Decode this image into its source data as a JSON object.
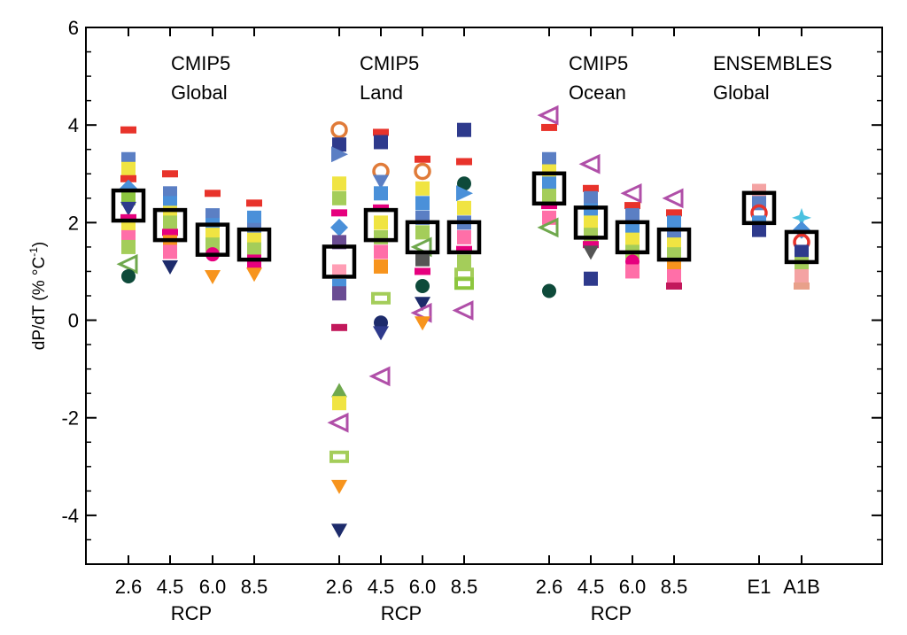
{
  "chart_data": {
    "type": "scatter",
    "title": "",
    "ylabel_main": "dP/dT (% °C",
    "ylabel_sup": "-1",
    "ylabel_close": ")",
    "ylim": [
      -5,
      6
    ],
    "yticks": [
      -4,
      -2,
      0,
      2,
      4,
      6
    ],
    "ytick_labels": [
      "-4",
      "-2",
      "0",
      "2",
      "4",
      "6"
    ],
    "grid": false,
    "legend": "none",
    "groups": [
      {
        "id": "cmip5-global",
        "label_line1": "CMIP5",
        "label_line2": "Global",
        "xlabel": "RCP"
      },
      {
        "id": "cmip5-land",
        "label_line1": "CMIP5",
        "label_line2": "Land",
        "xlabel": "RCP"
      },
      {
        "id": "cmip5-ocean",
        "label_line1": "CMIP5",
        "label_line2": "Ocean",
        "xlabel": "RCP"
      },
      {
        "id": "ensembles-global",
        "label_line1": "ENSEMBLES",
        "label_line2": "Global",
        "xlabel": ""
      }
    ],
    "columns": [
      {
        "group": 0,
        "label": "2.6",
        "mean": 2.35,
        "points": [
          {
            "y": 3.9,
            "c": "#e8332b",
            "s": "bar"
          },
          {
            "y": 3.3,
            "c": "#5b7fc4",
            "s": "sq"
          },
          {
            "y": 3.1,
            "c": "#f0e442",
            "s": "sq"
          },
          {
            "y": 2.9,
            "c": "#e8332b",
            "s": "bar"
          },
          {
            "y": 2.7,
            "c": "#4a90d9",
            "s": "diamond"
          },
          {
            "y": 2.5,
            "c": "#8dc63f",
            "s": "sq"
          },
          {
            "y": 2.3,
            "c": "#2e3a8c",
            "s": "tri-down"
          },
          {
            "y": 2.1,
            "c": "#e6007e",
            "s": "bar"
          },
          {
            "y": 1.9,
            "c": "#f0e442",
            "s": "sq"
          },
          {
            "y": 1.7,
            "c": "#ff6fa8",
            "s": "sq"
          },
          {
            "y": 1.5,
            "c": "#a4cd5a",
            "s": "sq"
          },
          {
            "y": 1.15,
            "c": "#6fa84d",
            "s": "tri-left"
          },
          {
            "y": 0.9,
            "c": "#0e4a3a",
            "s": "circle"
          }
        ]
      },
      {
        "group": 0,
        "label": "4.5",
        "mean": 1.95,
        "points": [
          {
            "y": 3.0,
            "c": "#e8332b",
            "s": "bar"
          },
          {
            "y": 2.6,
            "c": "#5b7fc4",
            "s": "sq"
          },
          {
            "y": 2.4,
            "c": "#4a90d9",
            "s": "sq"
          },
          {
            "y": 2.2,
            "c": "#f0e442",
            "s": "sq"
          },
          {
            "y": 2.0,
            "c": "#a4cd5a",
            "s": "sq"
          },
          {
            "y": 1.8,
            "c": "#e6007e",
            "s": "bar"
          },
          {
            "y": 1.6,
            "c": "#f7941d",
            "s": "sq"
          },
          {
            "y": 1.4,
            "c": "#ff6fa8",
            "s": "sq"
          },
          {
            "y": 1.1,
            "c": "#1d2b6b",
            "s": "tri-down"
          }
        ]
      },
      {
        "group": 0,
        "label": "6.0",
        "mean": 1.65,
        "points": [
          {
            "y": 2.6,
            "c": "#e8332b",
            "s": "bar"
          },
          {
            "y": 2.15,
            "c": "#5b7fc4",
            "s": "sq"
          },
          {
            "y": 1.95,
            "c": "#4a90d9",
            "s": "sq"
          },
          {
            "y": 1.75,
            "c": "#f0e442",
            "s": "sq"
          },
          {
            "y": 1.55,
            "c": "#a4cd5a",
            "s": "sq"
          },
          {
            "y": 1.35,
            "c": "#e6007e",
            "s": "circle"
          },
          {
            "y": 0.9,
            "c": "#f7941d",
            "s": "tri-down"
          }
        ]
      },
      {
        "group": 0,
        "label": "8.5",
        "mean": 1.55,
        "points": [
          {
            "y": 2.4,
            "c": "#e8332b",
            "s": "bar"
          },
          {
            "y": 2.1,
            "c": "#4a90d9",
            "s": "sq"
          },
          {
            "y": 1.85,
            "c": "#5b7fc4",
            "s": "sq"
          },
          {
            "y": 1.65,
            "c": "#f0e442",
            "s": "sq"
          },
          {
            "y": 1.45,
            "c": "#a4cd5a",
            "s": "sq"
          },
          {
            "y": 1.2,
            "c": "#e6007e",
            "s": "sq"
          },
          {
            "y": 0.95,
            "c": "#f7941d",
            "s": "tri-down"
          }
        ]
      },
      {
        "group": 1,
        "label": "2.6",
        "mean": 1.2,
        "points": [
          {
            "y": 3.9,
            "c": "#e07b39",
            "s": "ring"
          },
          {
            "y": 3.6,
            "c": "#2e3a8c",
            "s": "sq"
          },
          {
            "y": 3.4,
            "c": "#5b7fc4",
            "s": "tri-right"
          },
          {
            "y": 2.8,
            "c": "#f0e442",
            "s": "sq"
          },
          {
            "y": 2.5,
            "c": "#a4cd5a",
            "s": "sq"
          },
          {
            "y": 2.2,
            "c": "#e6007e",
            "s": "bar"
          },
          {
            "y": 1.9,
            "c": "#4a90d9",
            "s": "diamond"
          },
          {
            "y": 1.6,
            "c": "#6a4c93",
            "s": "sq"
          },
          {
            "y": 1.0,
            "c": "#ff9eb5",
            "s": "sq"
          },
          {
            "y": 0.7,
            "c": "#4a90d9",
            "s": "sq"
          },
          {
            "y": 0.55,
            "c": "#6a4c93",
            "s": "sq"
          },
          {
            "y": -0.15,
            "c": "#c2185b",
            "s": "bar"
          },
          {
            "y": -1.45,
            "c": "#6fa84d",
            "s": "tri-up"
          },
          {
            "y": -1.7,
            "c": "#f0e442",
            "s": "sq"
          },
          {
            "y": -2.1,
            "c": "#b04fa8",
            "s": "tri-left"
          },
          {
            "y": -2.8,
            "c": "#a4cd5a",
            "s": "hbox"
          },
          {
            "y": -3.4,
            "c": "#f7941d",
            "s": "tri-down"
          },
          {
            "y": -4.3,
            "c": "#1d2b6b",
            "s": "tri-down"
          }
        ]
      },
      {
        "group": 1,
        "label": "4.5",
        "mean": 1.95,
        "points": [
          {
            "y": 3.85,
            "c": "#e8332b",
            "s": "bar"
          },
          {
            "y": 3.65,
            "c": "#2e3a8c",
            "s": "sq"
          },
          {
            "y": 3.05,
            "c": "#e07b39",
            "s": "ring"
          },
          {
            "y": 2.85,
            "c": "#5b7fc4",
            "s": "tri-down"
          },
          {
            "y": 2.6,
            "c": "#4a90d9",
            "s": "sq"
          },
          {
            "y": 2.3,
            "c": "#e6007e",
            "s": "bar"
          },
          {
            "y": 2.0,
            "c": "#f0e442",
            "s": "sq"
          },
          {
            "y": 1.7,
            "c": "#a4cd5a",
            "s": "sq"
          },
          {
            "y": 1.4,
            "c": "#ff6fa8",
            "s": "sq"
          },
          {
            "y": 1.1,
            "c": "#f7941d",
            "s": "sq"
          },
          {
            "y": 0.45,
            "c": "#a4cd5a",
            "s": "hbox"
          },
          {
            "y": -0.05,
            "c": "#1d2b6b",
            "s": "circle"
          },
          {
            "y": -0.25,
            "c": "#2e3a8c",
            "s": "tri-down"
          },
          {
            "y": -1.15,
            "c": "#b04fa8",
            "s": "tri-left"
          }
        ]
      },
      {
        "group": 1,
        "label": "6.0",
        "mean": 1.7,
        "points": [
          {
            "y": 3.3,
            "c": "#e8332b",
            "s": "bar"
          },
          {
            "y": 3.05,
            "c": "#e07b39",
            "s": "ring"
          },
          {
            "y": 2.7,
            "c": "#f0e442",
            "s": "sq"
          },
          {
            "y": 2.4,
            "c": "#4a90d9",
            "s": "sq"
          },
          {
            "y": 2.1,
            "c": "#5b7fc4",
            "s": "sq"
          },
          {
            "y": 1.8,
            "c": "#a4cd5a",
            "s": "sq"
          },
          {
            "y": 1.5,
            "c": "#6fa84d",
            "s": "tri-left"
          },
          {
            "y": 1.25,
            "c": "#555555",
            "s": "sq"
          },
          {
            "y": 1.0,
            "c": "#e6007e",
            "s": "bar"
          },
          {
            "y": 0.7,
            "c": "#0e4a3a",
            "s": "circle"
          },
          {
            "y": 0.35,
            "c": "#1d2b6b",
            "s": "tri-down"
          },
          {
            "y": 0.15,
            "c": "#b04fa8",
            "s": "tri-left"
          },
          {
            "y": -0.05,
            "c": "#f7941d",
            "s": "tri-down"
          }
        ]
      },
      {
        "group": 1,
        "label": "8.5",
        "mean": 1.7,
        "points": [
          {
            "y": 3.9,
            "c": "#2e3a8c",
            "s": "sq"
          },
          {
            "y": 3.25,
            "c": "#e8332b",
            "s": "bar"
          },
          {
            "y": 2.8,
            "c": "#0e4a3a",
            "s": "circle"
          },
          {
            "y": 2.6,
            "c": "#4a90d9",
            "s": "tri-right"
          },
          {
            "y": 2.3,
            "c": "#f0e442",
            "s": "sq"
          },
          {
            "y": 2.0,
            "c": "#5b7fc4",
            "s": "sq"
          },
          {
            "y": 1.7,
            "c": "#ff6fa8",
            "s": "sq"
          },
          {
            "y": 1.45,
            "c": "#e6007e",
            "s": "bar"
          },
          {
            "y": 1.2,
            "c": "#a4cd5a",
            "s": "sq"
          },
          {
            "y": 0.95,
            "c": "#a4cd5a",
            "s": "hbox"
          },
          {
            "y": 0.75,
            "c": "#8dc63f",
            "s": "hbox"
          },
          {
            "y": 0.2,
            "c": "#b04fa8",
            "s": "tri-left"
          }
        ]
      },
      {
        "group": 2,
        "label": "2.6",
        "mean": 2.7,
        "points": [
          {
            "y": 4.2,
            "c": "#b04fa8",
            "s": "tri-left"
          },
          {
            "y": 3.95,
            "c": "#e8332b",
            "s": "bar"
          },
          {
            "y": 3.3,
            "c": "#5b7fc4",
            "s": "sq"
          },
          {
            "y": 3.05,
            "c": "#f0e442",
            "s": "sq"
          },
          {
            "y": 2.8,
            "c": "#4a90d9",
            "s": "sq"
          },
          {
            "y": 2.55,
            "c": "#a4cd5a",
            "s": "sq"
          },
          {
            "y": 2.35,
            "c": "#e6007e",
            "s": "bar"
          },
          {
            "y": 2.1,
            "c": "#ff6fa8",
            "s": "sq"
          },
          {
            "y": 1.9,
            "c": "#6fa84d",
            "s": "tri-left"
          },
          {
            "y": 0.6,
            "c": "#0e4a3a",
            "s": "circle"
          }
        ]
      },
      {
        "group": 2,
        "label": "4.5",
        "mean": 2.0,
        "points": [
          {
            "y": 3.2,
            "c": "#b04fa8",
            "s": "tri-left"
          },
          {
            "y": 2.7,
            "c": "#e8332b",
            "s": "bar"
          },
          {
            "y": 2.5,
            "c": "#5b7fc4",
            "s": "sq"
          },
          {
            "y": 2.25,
            "c": "#4a90d9",
            "s": "sq"
          },
          {
            "y": 2.0,
            "c": "#f0e442",
            "s": "sq"
          },
          {
            "y": 1.75,
            "c": "#a4cd5a",
            "s": "sq"
          },
          {
            "y": 1.55,
            "c": "#e6007e",
            "s": "bar"
          },
          {
            "y": 1.4,
            "c": "#555555",
            "s": "tri-down"
          },
          {
            "y": 0.85,
            "c": "#2e3a8c",
            "s": "sq"
          }
        ]
      },
      {
        "group": 2,
        "label": "6.0",
        "mean": 1.7,
        "points": [
          {
            "y": 2.6,
            "c": "#b04fa8",
            "s": "tri-left"
          },
          {
            "y": 2.35,
            "c": "#e8332b",
            "s": "bar"
          },
          {
            "y": 2.15,
            "c": "#5b7fc4",
            "s": "sq"
          },
          {
            "y": 1.9,
            "c": "#4a90d9",
            "s": "sq"
          },
          {
            "y": 1.65,
            "c": "#f0e442",
            "s": "sq"
          },
          {
            "y": 1.4,
            "c": "#a4cd5a",
            "s": "sq"
          },
          {
            "y": 1.2,
            "c": "#e6007e",
            "s": "circle"
          },
          {
            "y": 1.0,
            "c": "#ff6fa8",
            "s": "sq"
          }
        ]
      },
      {
        "group": 2,
        "label": "8.5",
        "mean": 1.55,
        "points": [
          {
            "y": 2.5,
            "c": "#b04fa8",
            "s": "tri-left"
          },
          {
            "y": 2.2,
            "c": "#e8332b",
            "s": "bar"
          },
          {
            "y": 2.0,
            "c": "#4a90d9",
            "s": "sq"
          },
          {
            "y": 1.75,
            "c": "#5b7fc4",
            "s": "sq"
          },
          {
            "y": 1.55,
            "c": "#f0e442",
            "s": "sq"
          },
          {
            "y": 1.35,
            "c": "#a4cd5a",
            "s": "sq"
          },
          {
            "y": 1.1,
            "c": "#f7941d",
            "s": "sq"
          },
          {
            "y": 0.9,
            "c": "#ff6fa8",
            "s": "sq"
          },
          {
            "y": 0.7,
            "c": "#c2185b",
            "s": "bar"
          }
        ]
      },
      {
        "group": 3,
        "label": "E1",
        "mean": 2.3,
        "points": [
          {
            "y": 2.65,
            "c": "#f4a3a3",
            "s": "sq"
          },
          {
            "y": 2.4,
            "c": "#5b7fc4",
            "s": "sq"
          },
          {
            "y": 2.2,
            "c": "#e8332b",
            "s": "ring"
          },
          {
            "y": 2.0,
            "c": "#4a90d9",
            "s": "sq"
          },
          {
            "y": 1.85,
            "c": "#2e3a8c",
            "s": "sq"
          }
        ]
      },
      {
        "group": 3,
        "label": "A1B",
        "mean": 1.5,
        "points": [
          {
            "y": 2.1,
            "c": "#4ac1e0",
            "s": "star"
          },
          {
            "y": 1.85,
            "c": "#4a90d9",
            "s": "diamond"
          },
          {
            "y": 1.6,
            "c": "#e8332b",
            "s": "ring"
          },
          {
            "y": 1.4,
            "c": "#2e3a8c",
            "s": "sq"
          },
          {
            "y": 1.15,
            "c": "#a4cd5a",
            "s": "sq"
          },
          {
            "y": 0.9,
            "c": "#f4a3a3",
            "s": "sq"
          },
          {
            "y": 0.7,
            "c": "#e8a08a",
            "s": "bar"
          }
        ]
      }
    ]
  }
}
